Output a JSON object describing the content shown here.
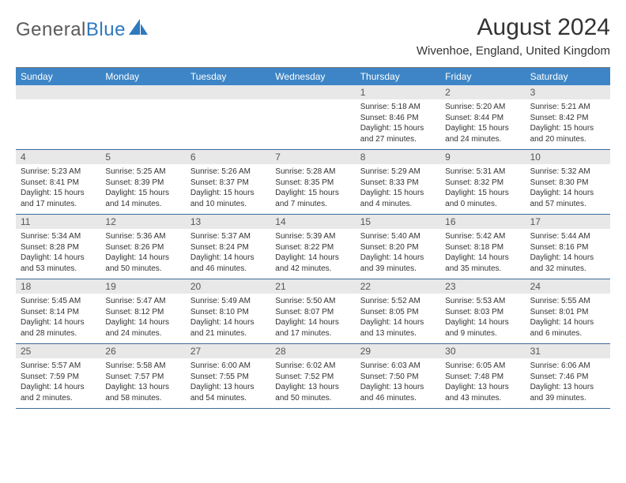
{
  "brand": {
    "part1": "General",
    "part2": "Blue"
  },
  "title": "August 2024",
  "location": "Wivenhoe, England, United Kingdom",
  "colors": {
    "header_bg": "#3d85c6",
    "header_text": "#ffffff",
    "daynum_bg": "#e8e8e8",
    "border": "#3d6b9a",
    "brand_gray": "#5a5a5a",
    "brand_blue": "#2f79bd"
  },
  "fonts": {
    "title_pt": 30,
    "location_pt": 15,
    "head_pt": 12,
    "cell_pt": 10
  },
  "day_headers": [
    "Sunday",
    "Monday",
    "Tuesday",
    "Wednesday",
    "Thursday",
    "Friday",
    "Saturday"
  ],
  "weeks": [
    [
      {
        "n": "",
        "t": ""
      },
      {
        "n": "",
        "t": ""
      },
      {
        "n": "",
        "t": ""
      },
      {
        "n": "",
        "t": ""
      },
      {
        "n": "1",
        "t": "Sunrise: 5:18 AM\nSunset: 8:46 PM\nDaylight: 15 hours and 27 minutes."
      },
      {
        "n": "2",
        "t": "Sunrise: 5:20 AM\nSunset: 8:44 PM\nDaylight: 15 hours and 24 minutes."
      },
      {
        "n": "3",
        "t": "Sunrise: 5:21 AM\nSunset: 8:42 PM\nDaylight: 15 hours and 20 minutes."
      }
    ],
    [
      {
        "n": "4",
        "t": "Sunrise: 5:23 AM\nSunset: 8:41 PM\nDaylight: 15 hours and 17 minutes."
      },
      {
        "n": "5",
        "t": "Sunrise: 5:25 AM\nSunset: 8:39 PM\nDaylight: 15 hours and 14 minutes."
      },
      {
        "n": "6",
        "t": "Sunrise: 5:26 AM\nSunset: 8:37 PM\nDaylight: 15 hours and 10 minutes."
      },
      {
        "n": "7",
        "t": "Sunrise: 5:28 AM\nSunset: 8:35 PM\nDaylight: 15 hours and 7 minutes."
      },
      {
        "n": "8",
        "t": "Sunrise: 5:29 AM\nSunset: 8:33 PM\nDaylight: 15 hours and 4 minutes."
      },
      {
        "n": "9",
        "t": "Sunrise: 5:31 AM\nSunset: 8:32 PM\nDaylight: 15 hours and 0 minutes."
      },
      {
        "n": "10",
        "t": "Sunrise: 5:32 AM\nSunset: 8:30 PM\nDaylight: 14 hours and 57 minutes."
      }
    ],
    [
      {
        "n": "11",
        "t": "Sunrise: 5:34 AM\nSunset: 8:28 PM\nDaylight: 14 hours and 53 minutes."
      },
      {
        "n": "12",
        "t": "Sunrise: 5:36 AM\nSunset: 8:26 PM\nDaylight: 14 hours and 50 minutes."
      },
      {
        "n": "13",
        "t": "Sunrise: 5:37 AM\nSunset: 8:24 PM\nDaylight: 14 hours and 46 minutes."
      },
      {
        "n": "14",
        "t": "Sunrise: 5:39 AM\nSunset: 8:22 PM\nDaylight: 14 hours and 42 minutes."
      },
      {
        "n": "15",
        "t": "Sunrise: 5:40 AM\nSunset: 8:20 PM\nDaylight: 14 hours and 39 minutes."
      },
      {
        "n": "16",
        "t": "Sunrise: 5:42 AM\nSunset: 8:18 PM\nDaylight: 14 hours and 35 minutes."
      },
      {
        "n": "17",
        "t": "Sunrise: 5:44 AM\nSunset: 8:16 PM\nDaylight: 14 hours and 32 minutes."
      }
    ],
    [
      {
        "n": "18",
        "t": "Sunrise: 5:45 AM\nSunset: 8:14 PM\nDaylight: 14 hours and 28 minutes."
      },
      {
        "n": "19",
        "t": "Sunrise: 5:47 AM\nSunset: 8:12 PM\nDaylight: 14 hours and 24 minutes."
      },
      {
        "n": "20",
        "t": "Sunrise: 5:49 AM\nSunset: 8:10 PM\nDaylight: 14 hours and 21 minutes."
      },
      {
        "n": "21",
        "t": "Sunrise: 5:50 AM\nSunset: 8:07 PM\nDaylight: 14 hours and 17 minutes."
      },
      {
        "n": "22",
        "t": "Sunrise: 5:52 AM\nSunset: 8:05 PM\nDaylight: 14 hours and 13 minutes."
      },
      {
        "n": "23",
        "t": "Sunrise: 5:53 AM\nSunset: 8:03 PM\nDaylight: 14 hours and 9 minutes."
      },
      {
        "n": "24",
        "t": "Sunrise: 5:55 AM\nSunset: 8:01 PM\nDaylight: 14 hours and 6 minutes."
      }
    ],
    [
      {
        "n": "25",
        "t": "Sunrise: 5:57 AM\nSunset: 7:59 PM\nDaylight: 14 hours and 2 minutes."
      },
      {
        "n": "26",
        "t": "Sunrise: 5:58 AM\nSunset: 7:57 PM\nDaylight: 13 hours and 58 minutes."
      },
      {
        "n": "27",
        "t": "Sunrise: 6:00 AM\nSunset: 7:55 PM\nDaylight: 13 hours and 54 minutes."
      },
      {
        "n": "28",
        "t": "Sunrise: 6:02 AM\nSunset: 7:52 PM\nDaylight: 13 hours and 50 minutes."
      },
      {
        "n": "29",
        "t": "Sunrise: 6:03 AM\nSunset: 7:50 PM\nDaylight: 13 hours and 46 minutes."
      },
      {
        "n": "30",
        "t": "Sunrise: 6:05 AM\nSunset: 7:48 PM\nDaylight: 13 hours and 43 minutes."
      },
      {
        "n": "31",
        "t": "Sunrise: 6:06 AM\nSunset: 7:46 PM\nDaylight: 13 hours and 39 minutes."
      }
    ]
  ]
}
